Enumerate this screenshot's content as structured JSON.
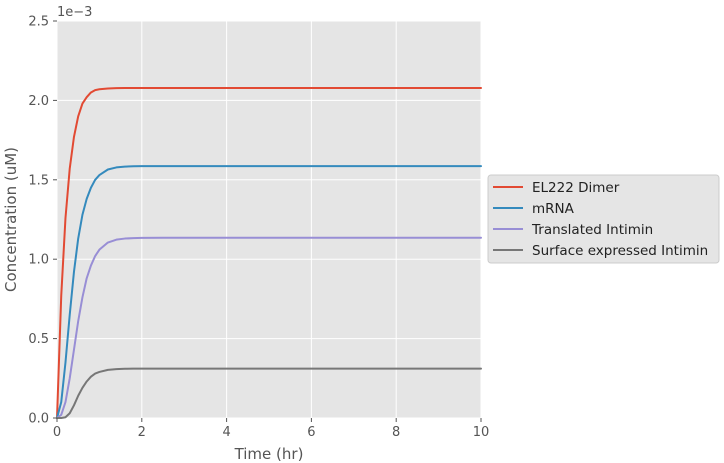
{
  "chart_data": {
    "type": "line",
    "title": "",
    "xlabel": "Time (hr)",
    "ylabel": "Concentration (uM)",
    "y_offset_text": "1e−3",
    "y_scale_factor": 0.001,
    "xlim": [
      0,
      10
    ],
    "ylim": [
      0,
      2.5
    ],
    "x_ticks": [
      0,
      2,
      4,
      6,
      8,
      10
    ],
    "x_tick_labels": [
      "0",
      "2",
      "4",
      "6",
      "8",
      "10"
    ],
    "y_ticks": [
      0,
      0.5,
      1.0,
      1.5,
      2.0,
      2.5
    ],
    "y_tick_labels": [
      "0.0",
      "0.5",
      "1.0",
      "1.5",
      "2.0",
      "2.5"
    ],
    "grid": true,
    "legend_position": "right-outside",
    "x": [
      0,
      0.1,
      0.2,
      0.3,
      0.4,
      0.5,
      0.6,
      0.7,
      0.8,
      0.9,
      1.0,
      1.2,
      1.4,
      1.6,
      1.8,
      2.0,
      2.5,
      3.0,
      4.0,
      5.0,
      6.0,
      7.0,
      8.0,
      9.0,
      10.0
    ],
    "series": [
      {
        "name": "EL222 Dimer",
        "color": "#E24A33",
        "values": [
          0,
          0.77,
          1.26,
          1.57,
          1.77,
          1.9,
          1.98,
          2.02,
          2.05,
          2.065,
          2.07,
          2.075,
          2.077,
          2.078,
          2.078,
          2.078,
          2.078,
          2.078,
          2.078,
          2.078,
          2.078,
          2.078,
          2.078,
          2.078,
          2.078
        ]
      },
      {
        "name": "mRNA",
        "color": "#348ABD",
        "values": [
          0,
          0.1,
          0.35,
          0.65,
          0.92,
          1.13,
          1.28,
          1.38,
          1.45,
          1.5,
          1.53,
          1.565,
          1.578,
          1.583,
          1.585,
          1.586,
          1.586,
          1.586,
          1.586,
          1.586,
          1.586,
          1.586,
          1.586,
          1.586,
          1.586
        ]
      },
      {
        "name": "Translated Intimin",
        "color": "#988ED5",
        "values": [
          0,
          0.02,
          0.1,
          0.25,
          0.43,
          0.61,
          0.76,
          0.88,
          0.96,
          1.02,
          1.06,
          1.105,
          1.123,
          1.13,
          1.133,
          1.134,
          1.135,
          1.135,
          1.135,
          1.135,
          1.135,
          1.135,
          1.135,
          1.135,
          1.135
        ]
      },
      {
        "name": "Surface expressed Intimin",
        "color": "#777777",
        "values": [
          0,
          0,
          0.005,
          0.03,
          0.08,
          0.14,
          0.19,
          0.23,
          0.26,
          0.28,
          0.29,
          0.303,
          0.308,
          0.31,
          0.311,
          0.311,
          0.311,
          0.311,
          0.311,
          0.311,
          0.311,
          0.311,
          0.311,
          0.311,
          0.311
        ]
      }
    ]
  }
}
